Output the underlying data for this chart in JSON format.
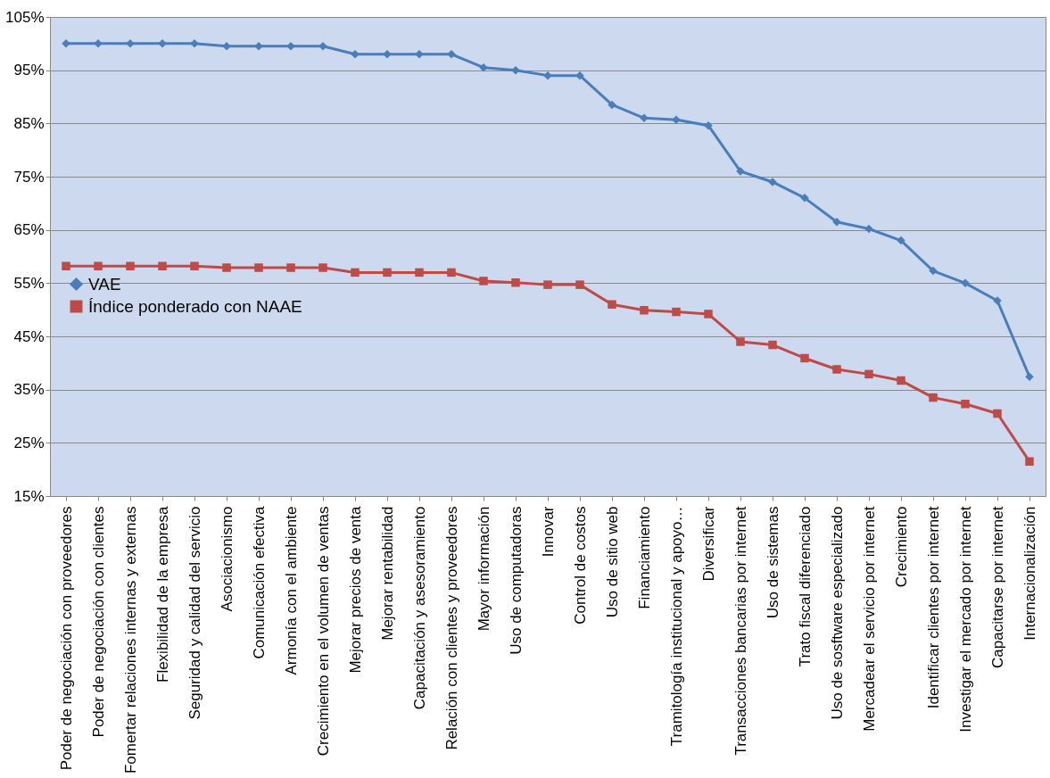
{
  "chart_data": {
    "type": "line",
    "categories": [
      "Poder de negociación con proveedores",
      "Poder de negociación con clientes",
      "Fomertar relaciones internas y externas",
      "Flexibilidad de la empresa",
      "Seguridad y calidad del servicio",
      "Asociacionismo",
      "Comunicación efectiva",
      "Armonía con el ambiente",
      "Crecimiento en el volumen de ventas",
      "Mejorar precios de venta",
      "Mejorar rentabilidad",
      "Capacitación y asesoramiento",
      "Relación con clientes y proveedores",
      "Mayor información",
      "Uso de computadoras",
      "Innovar",
      "Control de costos",
      "Uso de sitio web",
      "Financiamiento",
      "Tramitología institucional y apoyo…",
      "Diversificar",
      "Transacciones bancarias por internet",
      "Uso de sistemas",
      "Trato fiscal diferenciado",
      "Uso de sosftware especializado",
      "Mercadear el servicio por internet",
      "Crecimiento",
      "Identificar clientes por internet",
      "Investigar el mercado por internet",
      "Capacitarse por internet",
      "Internacionalización"
    ],
    "series": [
      {
        "name": "VAE",
        "color": "#4a7ebb",
        "marker": "diamond",
        "values": [
          100,
          100,
          100,
          100,
          100,
          99.5,
          99.5,
          99.5,
          99.5,
          98,
          98,
          98,
          98,
          95.5,
          95,
          94,
          94,
          88.5,
          86,
          85.7,
          84.6,
          76,
          74,
          71,
          66.5,
          65.2,
          63,
          57.3,
          55,
          51.7,
          37.4
        ]
      },
      {
        "name": "Índice ponderado con NAAE",
        "color": "#be4b48",
        "marker": "square",
        "values": [
          58.2,
          58.2,
          58.2,
          58.2,
          58.2,
          57.9,
          57.9,
          57.9,
          57.9,
          57,
          57,
          57,
          57,
          55.4,
          55.1,
          54.7,
          54.7,
          51,
          49.9,
          49.6,
          49.2,
          44,
          43.4,
          40.9,
          38.8,
          37.9,
          36.7,
          33.5,
          32.3,
          30.5,
          21.5
        ]
      }
    ],
    "ylim": [
      15,
      105
    ],
    "yticks": [
      {
        "value": 15,
        "label": "15%"
      },
      {
        "value": 25,
        "label": "25%"
      },
      {
        "value": 35,
        "label": "35%"
      },
      {
        "value": 45,
        "label": "45%"
      },
      {
        "value": 55,
        "label": "55%"
      },
      {
        "value": 65,
        "label": "65%"
      },
      {
        "value": 75,
        "label": "75%"
      },
      {
        "value": 85,
        "label": "85%"
      },
      {
        "value": 95,
        "label": "95%"
      },
      {
        "value": 105,
        "label": "105%"
      }
    ],
    "grid": "y",
    "legend": "left",
    "line_style": "solid"
  }
}
